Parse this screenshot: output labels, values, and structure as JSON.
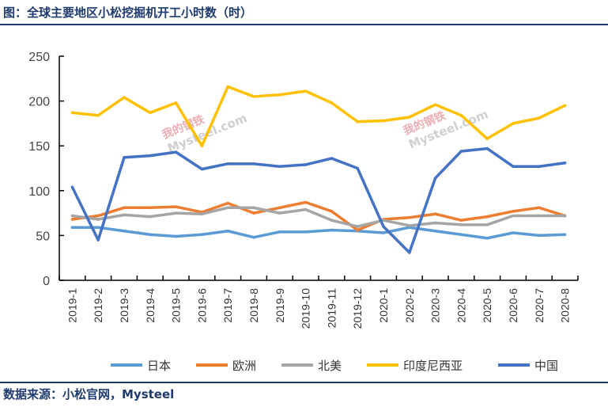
{
  "title": "图：全球主要地区小松挖掘机开工小时数（时）",
  "source": "数据来源：小松官网，Mysteel",
  "watermark": {
    "cn": "我的钢铁",
    "en": "Mysteel.com"
  },
  "chart_data": {
    "type": "line",
    "title": "全球主要地区小松挖掘机开工小时数（时）",
    "xlabel": "",
    "ylabel": "",
    "ylim": [
      0,
      250
    ],
    "yticks": [
      0,
      50,
      100,
      150,
      200,
      250
    ],
    "legend_position": "bottom",
    "grid": false,
    "categories": [
      "2019-1",
      "2019-2",
      "2019-3",
      "2019-4",
      "2019-5",
      "2019-6",
      "2019-7",
      "2019-8",
      "2019-9",
      "2019-10",
      "2019-11",
      "2019-12",
      "2020-1",
      "2020-2",
      "2020-3",
      "2020-4",
      "2020-5",
      "2020-6",
      "2020-7",
      "2020-8"
    ],
    "series": [
      {
        "name": "日本",
        "color": "#5b9bd5",
        "values": [
          59,
          59,
          55,
          51,
          49,
          51,
          55,
          48,
          54,
          54,
          56,
          55,
          53,
          59,
          55,
          51,
          47,
          53,
          50,
          51
        ]
      },
      {
        "name": "欧洲",
        "color": "#ed7d31",
        "values": [
          68,
          72,
          81,
          81,
          82,
          76,
          86,
          75,
          81,
          87,
          77,
          56,
          68,
          70,
          74,
          67,
          71,
          77,
          81,
          72
        ]
      },
      {
        "name": "北美",
        "color": "#a5a5a5",
        "values": [
          72,
          68,
          73,
          71,
          75,
          74,
          81,
          81,
          75,
          79,
          67,
          60,
          67,
          61,
          64,
          62,
          62,
          72,
          72,
          72
        ]
      },
      {
        "name": "印度尼西亚",
        "color": "#ffc000",
        "values": [
          187,
          184,
          204,
          187,
          198,
          150,
          216,
          205,
          207,
          211,
          198,
          177,
          178,
          182,
          196,
          184,
          158,
          175,
          181,
          195
        ]
      },
      {
        "name": "中国",
        "color": "#4472c4",
        "values": [
          104,
          45,
          137,
          139,
          143,
          124,
          130,
          130,
          127,
          129,
          136,
          125,
          60,
          31,
          114,
          144,
          147,
          127,
          127,
          131
        ]
      }
    ]
  }
}
